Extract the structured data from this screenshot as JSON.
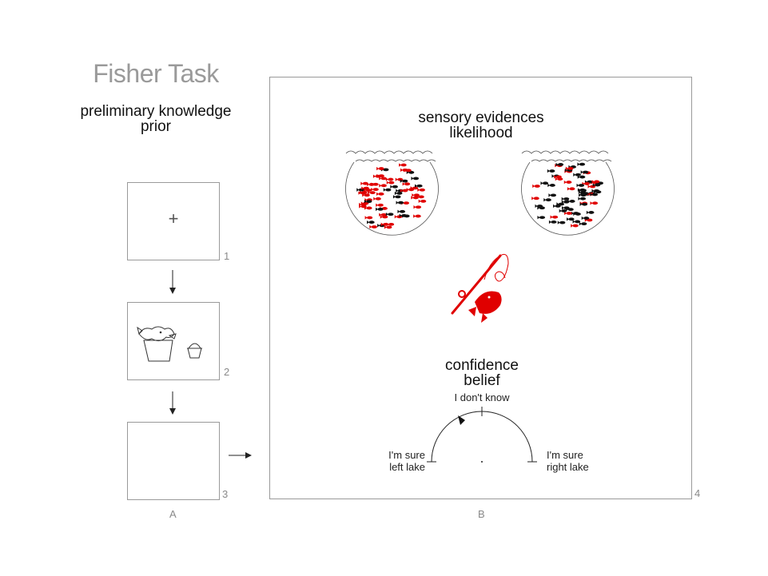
{
  "title": "Fisher Task",
  "prior": {
    "line1": "preliminary knowledge",
    "line2": "prior"
  },
  "likelihood": {
    "line1": "sensory evidences",
    "line2": "likelihood"
  },
  "belief": {
    "line1": "confidence",
    "line2": "belief"
  },
  "frames": {
    "n1": "1",
    "n2": "2",
    "n3": "3",
    "n4": "4"
  },
  "panels": {
    "a": "A",
    "b": "B"
  },
  "scale": {
    "top": "I don't know",
    "left_line1": "I'm sure",
    "left_line2": "left lake",
    "right_line1": "I'm sure",
    "right_line2": "right lake"
  },
  "fixation": "+",
  "colors": {
    "frame": "#9a9a9a",
    "red": "#e00000",
    "black": "#111111",
    "title": "#9a9a9a"
  },
  "lakes": [
    {
      "name": "left lake",
      "red_fraction": 0.7
    },
    {
      "name": "right lake",
      "red_fraction": 0.3
    }
  ]
}
